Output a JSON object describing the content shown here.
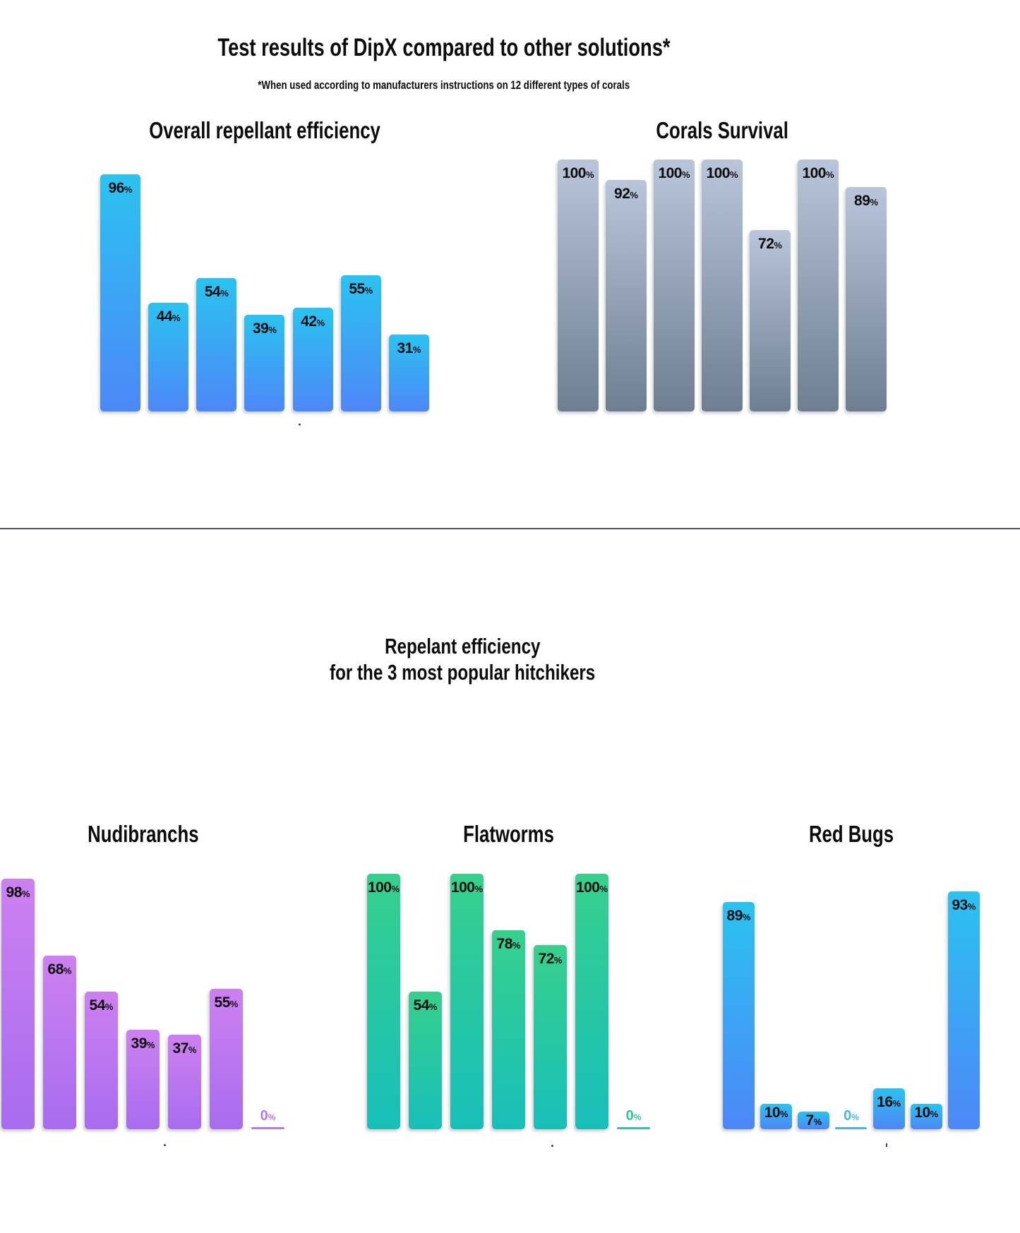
{
  "header": {
    "title": "Test results of DipX compared to other solutions*",
    "subtitle": "*When used according to manufacturers instructions on 12 different types of corals"
  },
  "section": {
    "title_line1": "Repelant efficiency",
    "title_line2": "for the 3 most popular hitchikers"
  },
  "divider_color": "#4d5561",
  "chart_data": [
    {
      "id": "overall-repellant-efficiency",
      "type": "bar",
      "title": "Overall repellant efficiency",
      "values": [
        96,
        44,
        54,
        39,
        42,
        55,
        31
      ],
      "unit": "%",
      "ylim": [
        0,
        100
      ],
      "grid": false,
      "legend": false,
      "palette": "blue",
      "bar_colors": {
        "top": "#2ac3f0",
        "bottom": "#4d87f8"
      },
      "label_color": "#0c0c0c"
    },
    {
      "id": "corals-survival",
      "type": "bar",
      "title": "Corals Survival",
      "values": [
        100,
        92,
        100,
        100,
        72,
        100,
        89
      ],
      "unit": "%",
      "ylim": [
        0,
        100
      ],
      "grid": false,
      "legend": false,
      "palette": "gray",
      "bar_colors": {
        "top": "#b9c5da",
        "bottom": "#6f7e93"
      },
      "label_color": "#0c0c0c"
    },
    {
      "id": "nudibranchs",
      "type": "bar",
      "title": "Nudibranchs",
      "values": [
        98,
        68,
        54,
        39,
        37,
        55,
        0
      ],
      "unit": "%",
      "ylim": [
        0,
        100
      ],
      "grid": false,
      "legend": false,
      "palette": "purple",
      "bar_colors": {
        "top": "#cd80f0",
        "bottom": "#a86cef"
      },
      "zero_color": "#b678ef",
      "label_color": "#0c0c0c"
    },
    {
      "id": "flatworms",
      "type": "bar",
      "title": "Flatworms",
      "values": [
        100,
        54,
        100,
        78,
        72,
        100,
        0
      ],
      "unit": "%",
      "ylim": [
        0,
        100
      ],
      "grid": false,
      "legend": false,
      "palette": "green",
      "bar_colors": {
        "top": "#36d08c",
        "bottom": "#18bfba"
      },
      "zero_color": "#2ec98f",
      "label_color": "#0c0c0c"
    },
    {
      "id": "red-bugs",
      "type": "bar",
      "title": "Red Bugs",
      "values": [
        89,
        10,
        7,
        0,
        16,
        10,
        93
      ],
      "unit": "%",
      "ylim": [
        0,
        100
      ],
      "grid": false,
      "legend": false,
      "palette": "blue",
      "bar_colors": {
        "top": "#2ac3f0",
        "bottom": "#4d87f8"
      },
      "zero_color": "#45b5f0",
      "label_color": "#0c0c0c"
    }
  ]
}
